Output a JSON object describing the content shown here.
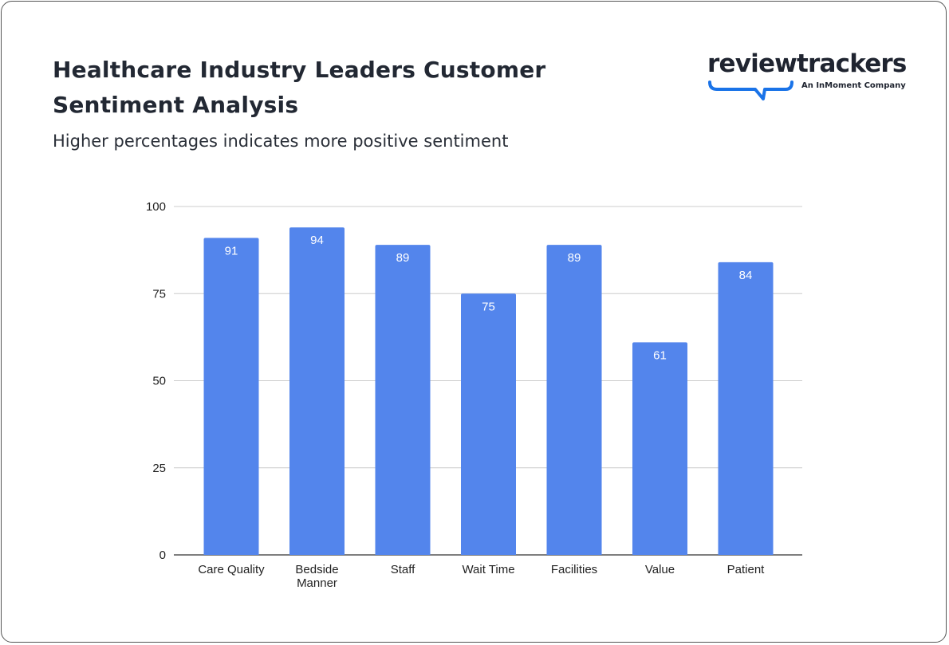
{
  "header": {
    "title": "Healthcare Industry Leaders Customer Sentiment Analysis",
    "subtitle": "Higher percentages indicates more positive sentiment"
  },
  "logo": {
    "wordmark": "reviewtrackers",
    "tagline": "An InMoment Company",
    "accent": "#1a73e8"
  },
  "chart_data": {
    "type": "bar",
    "categories": [
      "Care Quality",
      "Bedside Manner",
      "Staff",
      "Wait Time",
      "Facilities",
      "Value",
      "Patient"
    ],
    "values": [
      91,
      94,
      89,
      75,
      89,
      61,
      84
    ],
    "ylim": [
      0,
      100
    ],
    "yticks": [
      0,
      25,
      50,
      75,
      100
    ],
    "grid": true,
    "bar_color": "#5385ec",
    "data_labels": true
  }
}
